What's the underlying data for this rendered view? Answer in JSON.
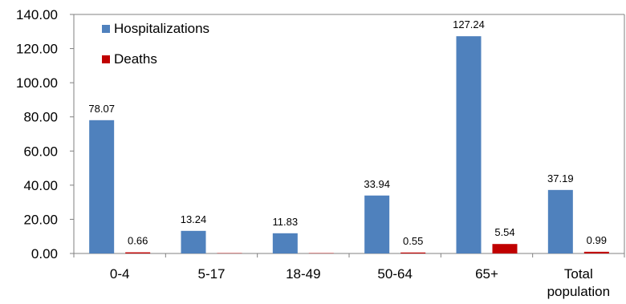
{
  "chart_data": {
    "type": "bar",
    "categories": [
      [
        "0-4"
      ],
      [
        "5-17"
      ],
      [
        "18-49"
      ],
      [
        "50-64"
      ],
      [
        "65+"
      ],
      [
        "Total",
        "population"
      ]
    ],
    "series": [
      {
        "name": "Hospitalizations",
        "color": "#4f81bd",
        "values": [
          78.07,
          13.24,
          11.83,
          33.94,
          127.24,
          37.19
        ],
        "labels": [
          "78.07",
          "13.24",
          "11.83",
          "33.94",
          "127.24",
          "37.19"
        ]
      },
      {
        "name": "Deaths",
        "color": "#c00000",
        "values": [
          0.66,
          0.2,
          0.2,
          0.55,
          5.54,
          0.99
        ],
        "labels": [
          "0.66",
          "",
          "",
          "0.55",
          "5.54",
          "0.99"
        ]
      }
    ],
    "yticks": [
      "0.00",
      "20.00",
      "40.00",
      "60.00",
      "80.00",
      "100.00",
      "120.00",
      "140.00"
    ],
    "ylim": [
      0,
      140
    ],
    "grid": false,
    "legend_position": "top-left inside",
    "title": "",
    "xlabel": "",
    "ylabel": ""
  }
}
